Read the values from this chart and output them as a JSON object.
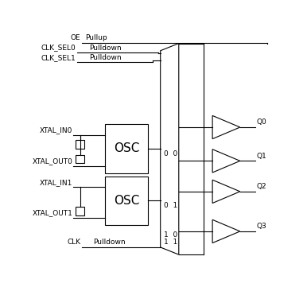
{
  "fig_width": 3.86,
  "fig_height": 3.71,
  "dpi": 100,
  "bg_color": "#ffffff",
  "line_color": "#000000",
  "font_size": 6.5,
  "oe_label": "OE",
  "oe_pulltype": "Pullup",
  "sel0_label": "CLK_SEL0",
  "sel0_pulltype": "Pulldown",
  "sel1_label": "CLK_SEL1",
  "sel1_pulltype": "Pulldown",
  "osc0_label": "OSC",
  "xtal_in0": "XTAL_IN0",
  "xtal_out0": "XTAL_OUT0",
  "mux_label0": "0  0",
  "osc1_label": "OSC",
  "xtal_in1": "XTAL_IN1",
  "xtal_out1": "XTAL_OUT1",
  "mux_label1": "0  1",
  "clk_label": "CLK",
  "clk_pulltype": "Pulldown",
  "mux_label2": "1  0",
  "mux_label3": "1  1",
  "q_labels": [
    "Q0",
    "Q1",
    "Q2",
    "Q3"
  ]
}
